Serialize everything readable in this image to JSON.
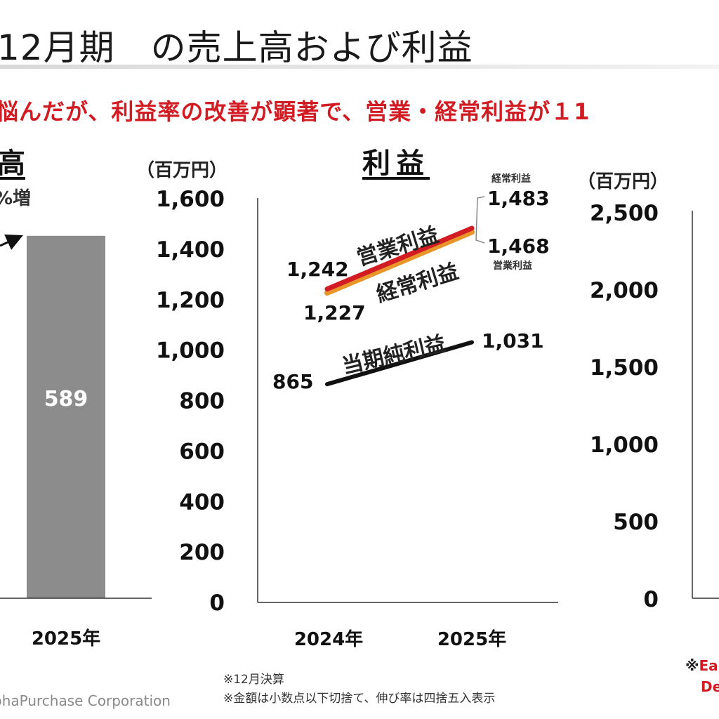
{
  "header": {
    "title": "12月期　の売上高および利益",
    "subtitle": "悩んだが、利益率の改善が顕著で、営業・経常利益が１1",
    "sales_title": "高",
    "growth_note": "%増",
    "profit_title": "利益",
    "unit_left": "（百万円）",
    "unit_right": "（百万円）"
  },
  "footer": {
    "note1": "※12月決算",
    "note2": "※金額は小数点以下切捨て、伸び率は四捨五入表示",
    "company": "phaPurchase Corporation",
    "ed_line1_mark": "※",
    "ed_line1": "Ea",
    "ed_line2": "De"
  },
  "colors": {
    "bar": "#8c8c8c",
    "operating": "#e8962a",
    "ordinary": "#d21c24",
    "net": "#111111",
    "accent": "#d21c24"
  },
  "chart_data": [
    {
      "type": "bar",
      "categories": [
        "2025年"
      ],
      "values": [
        589
      ],
      "data_labels": [
        "589"
      ]
    },
    {
      "type": "line",
      "title": "利益",
      "x": [
        "2024年",
        "2025年"
      ],
      "ylim": [
        0,
        1600
      ],
      "yticks": [
        "0",
        "200",
        "400",
        "600",
        "800",
        "1,000",
        "1,200",
        "1,400",
        "1,600"
      ],
      "ylabel": "（百万円）",
      "series": [
        {
          "name": "営業利益",
          "values": [
            1227,
            1468
          ],
          "labels": [
            "1,227",
            "1,468"
          ],
          "end_tag": "営業利益"
        },
        {
          "name": "経常利益",
          "values": [
            1242,
            1483
          ],
          "labels": [
            "1,242",
            "1,483"
          ],
          "end_tag": "経常利益"
        },
        {
          "name": "当期純利益",
          "values": [
            865,
            1031
          ],
          "labels": [
            "865",
            "1,031"
          ]
        }
      ]
    },
    {
      "type": "bar",
      "ylim": [
        0,
        2500
      ],
      "yticks": [
        "0",
        "500",
        "1,000",
        "1,500",
        "2,000",
        "2,500"
      ],
      "ylabel": "（百万円）"
    }
  ]
}
